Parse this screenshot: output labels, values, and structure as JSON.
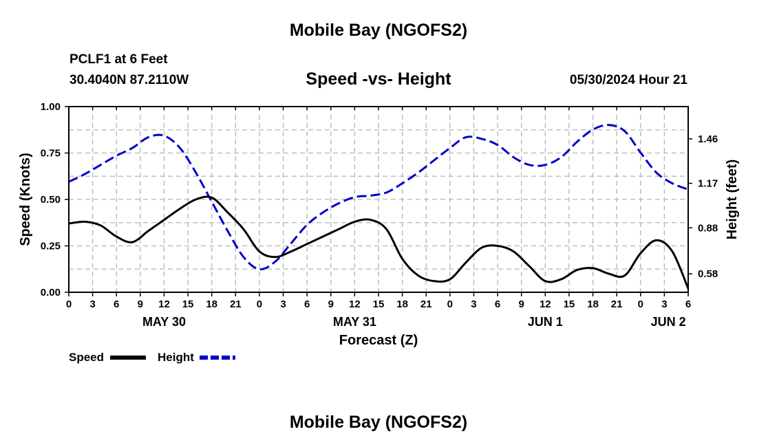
{
  "header": {
    "title": "Mobile Bay (NGOFS2)",
    "station": "PCLF1 at 6 Feet",
    "coords": "30.4040N  87.2110W",
    "subtitle": "Speed -vs- Height",
    "datetime": "05/30/2024 Hour 21"
  },
  "footer": {
    "title": "Mobile Bay (NGOFS2)"
  },
  "chart_data": {
    "type": "line",
    "title": "Speed -vs- Height",
    "xlabel": "Forecast (Z)",
    "ylabel": "Speed (Knots)",
    "y2label": "Height (feet)",
    "xlim": [
      0,
      78
    ],
    "ylim": [
      0,
      1.0
    ],
    "y2lim": [
      0.46,
      1.67
    ],
    "grid": true,
    "x_ticks": [
      0,
      3,
      6,
      9,
      12,
      15,
      18,
      21,
      24,
      27,
      30,
      33,
      36,
      39,
      42,
      45,
      48,
      51,
      54,
      57,
      60,
      63,
      66,
      69,
      72,
      75,
      78
    ],
    "x_tick_labels": [
      "0",
      "3",
      "6",
      "9",
      "12",
      "15",
      "18",
      "21",
      "0",
      "3",
      "6",
      "9",
      "12",
      "15",
      "18",
      "21",
      "0",
      "3",
      "6",
      "9",
      "12",
      "15",
      "18",
      "21",
      "0",
      "3",
      "6"
    ],
    "date_labels": [
      {
        "label": "MAY 30",
        "x": 12
      },
      {
        "label": "MAY 31",
        "x": 36
      },
      {
        "label": "JUN 1",
        "x": 60
      },
      {
        "label": "JUN 2",
        "x": 75.5
      }
    ],
    "y_ticks": [
      "0.00",
      "0.25",
      "0.50",
      "0.75",
      "1.00"
    ],
    "y_tick_values": [
      0,
      0.25,
      0.5,
      0.75,
      1.0
    ],
    "y2_ticks": [
      "0.58",
      "0.88",
      "1.17",
      "1.46"
    ],
    "y2_tick_values": [
      0.58,
      0.88,
      1.17,
      1.46
    ],
    "series": [
      {
        "name": "Speed",
        "axis": "left",
        "color": "#000000",
        "dash": "solid",
        "x": [
          0,
          2,
          4,
          6,
          8,
          10,
          12,
          14,
          16,
          18,
          20,
          22,
          24,
          26,
          28,
          30,
          32,
          34,
          36,
          38,
          40,
          42,
          44,
          46,
          48,
          50,
          52,
          54,
          56,
          58,
          60,
          62,
          64,
          66,
          68,
          70,
          72,
          74,
          76,
          78
        ],
        "values": [
          0.37,
          0.38,
          0.36,
          0.3,
          0.27,
          0.33,
          0.39,
          0.45,
          0.5,
          0.51,
          0.43,
          0.34,
          0.22,
          0.19,
          0.22,
          0.26,
          0.3,
          0.34,
          0.38,
          0.39,
          0.34,
          0.18,
          0.09,
          0.06,
          0.07,
          0.16,
          0.24,
          0.25,
          0.22,
          0.14,
          0.06,
          0.07,
          0.12,
          0.13,
          0.1,
          0.09,
          0.21,
          0.28,
          0.22,
          0.02
        ]
      },
      {
        "name": "Height",
        "axis": "right",
        "color": "#0000cc",
        "dash": "dashed",
        "x": [
          0,
          2,
          4,
          6,
          8,
          10,
          12,
          14,
          16,
          18,
          20,
          22,
          24,
          26,
          28,
          30,
          32,
          34,
          36,
          38,
          40,
          42,
          44,
          46,
          48,
          50,
          52,
          54,
          56,
          58,
          60,
          62,
          64,
          66,
          68,
          70,
          72,
          74,
          76,
          78
        ],
        "values": [
          1.18,
          1.23,
          1.29,
          1.35,
          1.4,
          1.47,
          1.48,
          1.4,
          1.24,
          1.05,
          0.86,
          0.69,
          0.61,
          0.66,
          0.78,
          0.9,
          0.98,
          1.04,
          1.08,
          1.09,
          1.11,
          1.17,
          1.24,
          1.32,
          1.4,
          1.47,
          1.46,
          1.42,
          1.34,
          1.29,
          1.29,
          1.34,
          1.44,
          1.52,
          1.55,
          1.51,
          1.37,
          1.24,
          1.17,
          1.13
        ]
      }
    ],
    "legend": [
      {
        "label": "Speed",
        "color": "#000000",
        "dash": "solid"
      },
      {
        "label": "Height",
        "color": "#0000cc",
        "dash": "dashed"
      }
    ]
  }
}
